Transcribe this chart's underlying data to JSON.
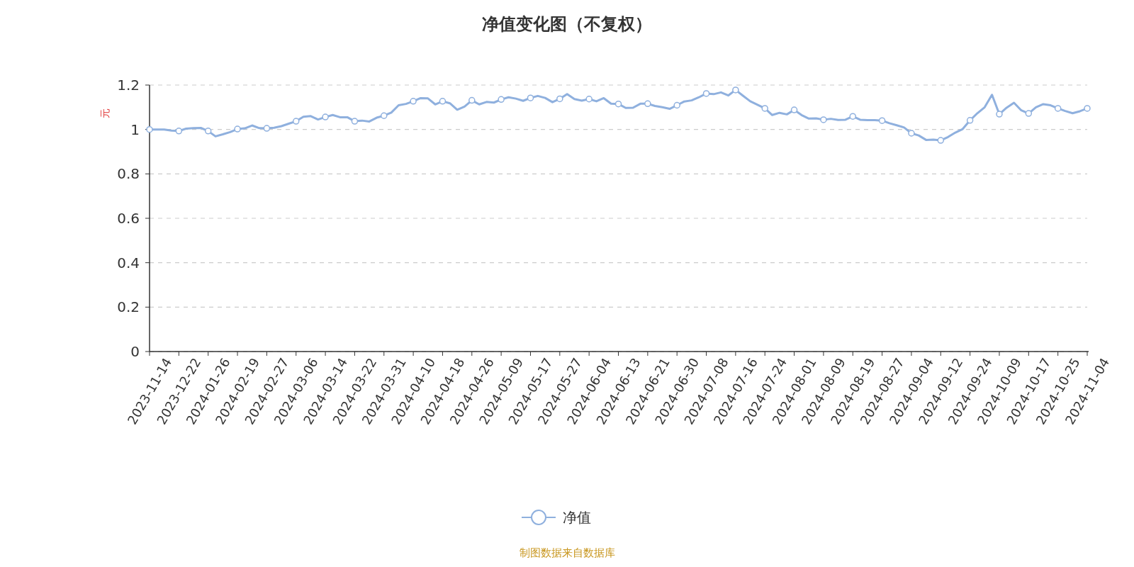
{
  "chart_data": {
    "type": "line",
    "title": "净值变化图（不复权）",
    "ylabel": "元",
    "categories": [
      "2023-11-14",
      null,
      null,
      null,
      "2023-12-22",
      null,
      null,
      null,
      "2024-01-26",
      null,
      null,
      null,
      "2024-02-19",
      null,
      null,
      null,
      "2024-02-27",
      null,
      null,
      null,
      "2024-03-06",
      null,
      null,
      null,
      "2024-03-14",
      null,
      null,
      null,
      "2024-03-22",
      null,
      null,
      null,
      "2024-03-31",
      null,
      null,
      null,
      "2024-04-10",
      null,
      null,
      null,
      "2024-04-18",
      null,
      null,
      null,
      "2024-04-26",
      null,
      null,
      null,
      "2024-05-09",
      null,
      null,
      null,
      "2024-05-17",
      null,
      null,
      null,
      "2024-05-27",
      null,
      null,
      null,
      "2024-06-04",
      null,
      null,
      null,
      "2024-06-13",
      null,
      null,
      null,
      "2024-06-21",
      null,
      null,
      null,
      "2024-06-30",
      null,
      null,
      null,
      "2024-07-08",
      null,
      null,
      null,
      "2024-07-16",
      null,
      null,
      null,
      "2024-07-24",
      null,
      null,
      null,
      "2024-08-01",
      null,
      null,
      null,
      "2024-08-09",
      null,
      null,
      null,
      "2024-08-19",
      null,
      null,
      null,
      "2024-08-27",
      null,
      null,
      null,
      "2024-09-04",
      null,
      null,
      null,
      "2024-09-12",
      null,
      null,
      null,
      "2024-09-24",
      null,
      null,
      null,
      "2024-10-09",
      null,
      null,
      null,
      "2024-10-17",
      null,
      null,
      null,
      "2024-10-25",
      null,
      null,
      null,
      "2024-11-04"
    ],
    "series": [
      {
        "name": "净值",
        "color": "#8fb0de",
        "values": [
          1.0,
          1.0,
          1.0,
          0.995,
          0.993,
          1.004,
          1.006,
          1.007,
          0.993,
          0.969,
          0.978,
          0.988,
          1.002,
          1.005,
          1.018,
          1.006,
          1.005,
          1.008,
          1.015,
          1.026,
          1.037,
          1.057,
          1.06,
          1.045,
          1.056,
          1.065,
          1.055,
          1.055,
          1.037,
          1.04,
          1.036,
          1.053,
          1.062,
          1.076,
          1.109,
          1.115,
          1.127,
          1.141,
          1.14,
          1.113,
          1.127,
          1.118,
          1.089,
          1.103,
          1.131,
          1.113,
          1.124,
          1.121,
          1.135,
          1.145,
          1.139,
          1.129,
          1.142,
          1.151,
          1.142,
          1.123,
          1.138,
          1.159,
          1.137,
          1.13,
          1.137,
          1.127,
          1.141,
          1.116,
          1.115,
          1.097,
          1.098,
          1.116,
          1.116,
          1.106,
          1.1,
          1.093,
          1.109,
          1.126,
          1.131,
          1.145,
          1.162,
          1.159,
          1.167,
          1.153,
          1.178,
          1.152,
          1.127,
          1.111,
          1.095,
          1.065,
          1.075,
          1.068,
          1.088,
          1.065,
          1.049,
          1.05,
          1.044,
          1.048,
          1.043,
          1.044,
          1.059,
          1.044,
          1.042,
          1.042,
          1.04,
          1.028,
          1.019,
          1.009,
          0.983,
          0.973,
          0.953,
          0.954,
          0.951,
          0.966,
          0.986,
          1.002,
          1.041,
          1.073,
          1.1,
          1.156,
          1.069,
          1.098,
          1.12,
          1.086,
          1.072,
          1.1,
          1.114,
          1.109,
          1.095,
          1.083,
          1.073,
          1.082,
          1.095
        ]
      },
      {
        "type": "scatter",
        "color": "#ffffff",
        "marker": "circle",
        "values": [
          1.0,
          null,
          null,
          null,
          0.993,
          null,
          null,
          null,
          0.993,
          null,
          null,
          null,
          1.002,
          null,
          null,
          null,
          1.005,
          null,
          null,
          null,
          1.037,
          null,
          null,
          null,
          1.056,
          null,
          null,
          null,
          1.037,
          null,
          null,
          null,
          1.062,
          null,
          null,
          null,
          1.127,
          null,
          null,
          null,
          1.127,
          null,
          null,
          null,
          1.131,
          null,
          null,
          null,
          1.135,
          null,
          null,
          null,
          1.142,
          null,
          null,
          null,
          1.138,
          null,
          null,
          null,
          1.137,
          null,
          null,
          null,
          1.115,
          null,
          null,
          null,
          1.116,
          null,
          null,
          null,
          1.109,
          null,
          null,
          null,
          1.162,
          null,
          null,
          null,
          1.178,
          null,
          null,
          null,
          1.095,
          null,
          null,
          null,
          1.088,
          null,
          null,
          null,
          1.044,
          null,
          null,
          null,
          1.059,
          null,
          null,
          null,
          1.04,
          null,
          null,
          null,
          0.983,
          null,
          null,
          null,
          0.951,
          null,
          null,
          null,
          1.041,
          null,
          null,
          null,
          1.069,
          null,
          null,
          null,
          1.072,
          null,
          null,
          null,
          1.095,
          null,
          null,
          null,
          1.095
        ]
      }
    ],
    "ylim": [
      0,
      1.2
    ],
    "yticks": [
      0,
      0.2,
      0.4,
      0.6,
      0.8,
      1,
      1.2
    ],
    "grid": "y",
    "legend": "bottom",
    "line_style": "solid",
    "annotations": [
      "制图数据来自数据库"
    ]
  }
}
